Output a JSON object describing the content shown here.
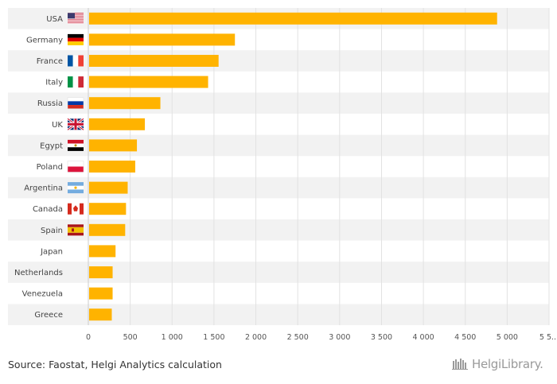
{
  "chart_data": {
    "type": "bar",
    "orientation": "horizontal",
    "categories": [
      {
        "name": "USA",
        "flag": "flag-usa",
        "value": 4880
      },
      {
        "name": "Germany",
        "flag": "flag-germany",
        "value": 1750
      },
      {
        "name": "France",
        "flag": "flag-france",
        "value": 1555
      },
      {
        "name": "Italy",
        "flag": "flag-italy",
        "value": 1430
      },
      {
        "name": "Russia",
        "flag": "flag-russia",
        "value": 860
      },
      {
        "name": "UK",
        "flag": "flag-uk",
        "value": 675
      },
      {
        "name": "Egypt",
        "flag": "flag-egypt",
        "value": 580
      },
      {
        "name": "Poland",
        "flag": "flag-poland",
        "value": 560
      },
      {
        "name": "Argentina",
        "flag": "flag-argentina",
        "value": 470
      },
      {
        "name": "Canada",
        "flag": "flag-canada",
        "value": 450
      },
      {
        "name": "Spain",
        "flag": "flag-spain",
        "value": 440
      },
      {
        "name": "Japan",
        "flag": null,
        "value": 325
      },
      {
        "name": "Netherlands",
        "flag": null,
        "value": 290
      },
      {
        "name": "Venezuela",
        "flag": null,
        "value": 290
      },
      {
        "name": "Greece",
        "flag": null,
        "value": 280
      }
    ],
    "xlim": [
      0,
      5500
    ],
    "ticks": [
      0,
      500,
      1000,
      1500,
      2000,
      2500,
      3000,
      3500,
      4000,
      4500,
      5000,
      5500
    ],
    "tick_labels": [
      "0",
      "500",
      "1 000",
      "1 500",
      "2 000",
      "2 500",
      "3 000",
      "3 500",
      "4 000",
      "4 500",
      "5 000",
      "5 5..."
    ],
    "grid": true,
    "bar_color": "#ffb300",
    "stripe_color": "#f2f2f2"
  },
  "footer": {
    "source": "Source: Faostat, Helgi Analytics calculation",
    "logo_text": "HelgiLibrary."
  }
}
